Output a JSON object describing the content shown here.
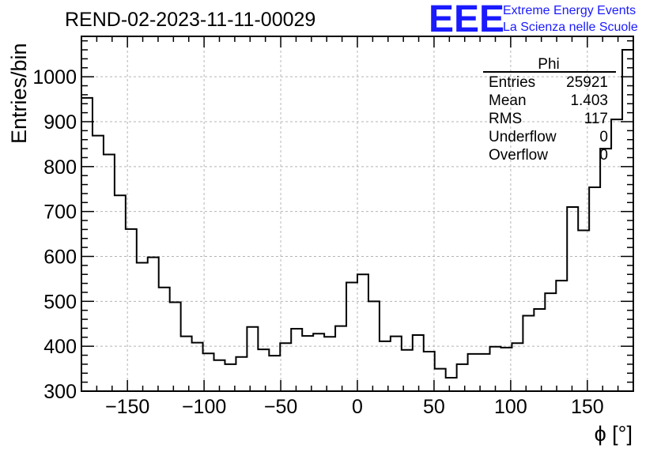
{
  "chart_data": {
    "type": "histogram",
    "title": "REND-02-2023-11-11-00029",
    "xlabel": "ϕ [°]",
    "ylabel": "Entries/bin",
    "xlim": [
      -180,
      180
    ],
    "ylim": [
      300,
      1090
    ],
    "grid": true,
    "x_ticks": [
      -150,
      -100,
      -50,
      0,
      50,
      100,
      150
    ],
    "x_tick_labels": [
      "−150",
      "−100",
      "−50",
      "0",
      "50",
      "100",
      "150"
    ],
    "y_ticks": [
      300,
      400,
      500,
      600,
      700,
      800,
      900,
      1000
    ],
    "y_tick_labels": [
      "300",
      "400",
      "500",
      "600",
      "700",
      "800",
      "900",
      "1000"
    ],
    "bin_edges_start": -180,
    "bin_width": 7.2,
    "values": [
      953,
      869,
      827,
      736,
      661,
      586,
      598,
      531,
      498,
      422,
      408,
      384,
      369,
      360,
      376,
      443,
      393,
      379,
      407,
      439,
      423,
      428,
      421,
      445,
      542,
      560,
      500,
      411,
      422,
      392,
      425,
      388,
      350,
      330,
      360,
      383,
      383,
      399,
      397,
      407,
      468,
      483,
      518,
      546,
      710,
      658,
      754,
      840,
      905,
      1060
    ],
    "stats_box": {
      "title": "Phi",
      "rows": [
        {
          "label": "Entries",
          "value": "25921"
        },
        {
          "label": "Mean",
          "value": "1.403"
        },
        {
          "label": "RMS",
          "value": "117"
        },
        {
          "label": "Underflow",
          "value": "0"
        },
        {
          "label": "Overflow",
          "value": "0"
        }
      ]
    }
  },
  "branding": {
    "logo": "EEE",
    "line1": "Extreme Energy Events",
    "line2": "La Scienza nelle Scuole",
    "color": "#1a1aff"
  },
  "colors": {
    "line": "#000000",
    "grid": "#b4b4b4",
    "brand": "#1a1aff"
  }
}
